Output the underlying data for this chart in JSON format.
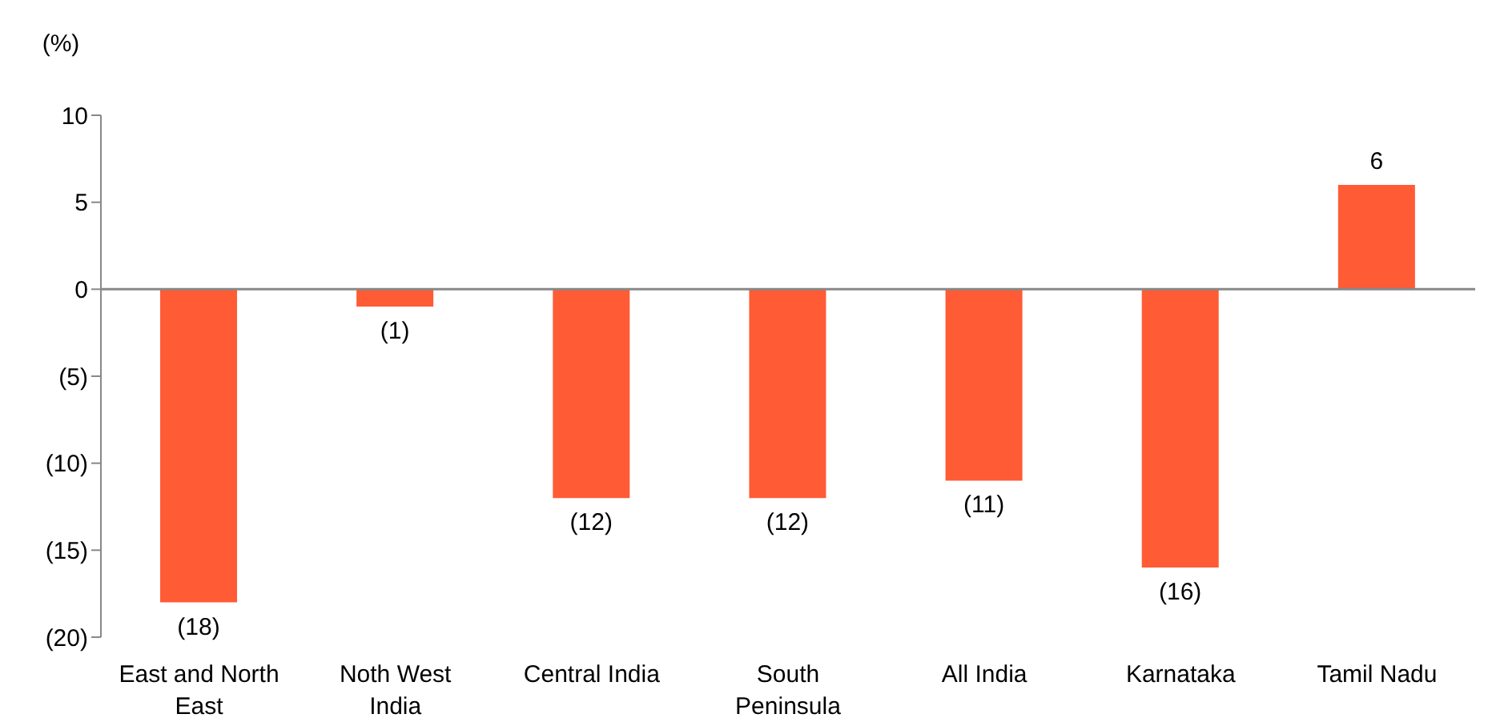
{
  "chart_data": {
    "type": "bar",
    "ylabel": "(%)",
    "categories": [
      "East and North East",
      "Noth West India",
      "Central India",
      "South Peninsula",
      "All India",
      "Karnataka",
      "Tamil Nadu"
    ],
    "values": [
      -18,
      -1,
      -12,
      -12,
      -11,
      -16,
      6
    ],
    "value_labels": [
      "(18)",
      "(1)",
      "(12)",
      "(12)",
      "(11)",
      "(16)",
      "6"
    ],
    "color": "#ff5b35",
    "ylim": [
      -20,
      10
    ],
    "yticks": [
      {
        "value": -20,
        "label": "(20)"
      },
      {
        "value": -15,
        "label": "(15)"
      },
      {
        "value": -10,
        "label": "(10)"
      },
      {
        "value": -5,
        "label": "(5)"
      },
      0,
      5,
      10
    ],
    "legend": false
  }
}
